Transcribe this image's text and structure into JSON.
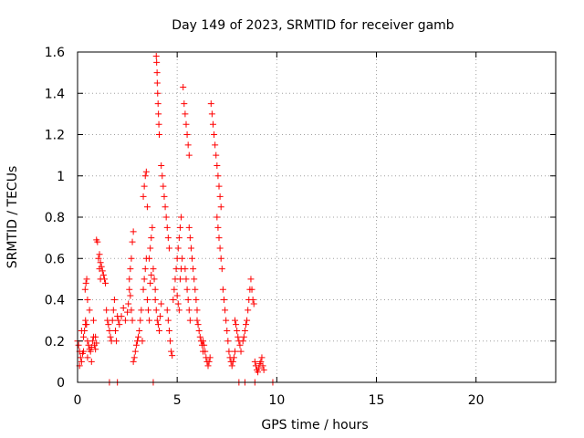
{
  "chart_data": {
    "type": "scatter",
    "title": "Day 149 of 2023, SRMTID for receiver gamb",
    "xlabel": "GPS time / hours",
    "ylabel": "SRMTID / TECUs",
    "xlim": [
      0,
      24
    ],
    "ylim": [
      0,
      1.6
    ],
    "xticks": [
      0,
      5,
      10,
      15,
      20
    ],
    "xtick_labels": [
      "0",
      "5",
      "10",
      "15",
      "20"
    ],
    "yticks": [
      0,
      0.2,
      0.4,
      0.6,
      0.8,
      1.0,
      1.2,
      1.4,
      1.6
    ],
    "ytick_labels": [
      "0",
      "0.2",
      "0.4",
      "0.6",
      "0.8",
      "1",
      "1.2",
      "1.4",
      "1.6"
    ],
    "grid": true,
    "marker": "+",
    "color": "#ff0000",
    "series": [
      {
        "x": [
          0.0,
          0.05,
          0.1,
          0.15,
          0.2,
          0.25,
          0.3,
          0.35,
          0.4,
          0.45,
          0.5,
          0.55,
          0.6,
          0.65,
          0.7,
          0.75,
          0.8,
          0.85,
          0.9,
          0.95,
          0.1,
          0.2,
          0.3,
          0.4,
          0.5,
          0.6,
          0.7,
          0.8,
          0.9,
          0.38,
          0.42,
          0.46,
          0.5,
          0.95,
          1.0,
          1.05,
          1.1,
          1.15,
          1.1,
          1.15,
          1.2,
          1.25,
          1.3,
          1.35,
          1.4,
          1.45,
          1.5,
          1.55,
          1.6,
          1.65,
          1.7,
          1.75,
          1.8,
          1.85,
          1.9,
          1.95,
          2.0,
          2.05,
          2.1,
          2.2,
          2.3,
          2.4,
          2.5,
          2.55,
          2.6,
          2.65,
          2.7,
          2.75,
          2.8,
          2.6,
          2.65,
          2.7,
          2.75,
          2.8,
          2.85,
          2.9,
          2.95,
          3.0,
          3.05,
          3.1,
          3.15,
          3.2,
          3.25,
          3.3,
          3.35,
          3.4,
          3.45,
          3.5,
          3.55,
          3.6,
          3.65,
          3.7,
          3.3,
          3.35,
          3.4,
          3.45,
          3.5,
          3.6,
          3.65,
          3.7,
          3.75,
          3.8,
          3.85,
          3.9,
          3.95,
          3.97,
          3.99,
          4.0,
          4.02,
          4.04,
          4.06,
          4.08,
          4.1,
          3.9,
          3.95,
          4.0,
          4.05,
          4.1,
          4.15,
          4.2,
          4.2,
          4.25,
          4.3,
          4.35,
          4.4,
          4.45,
          4.5,
          4.55,
          4.6,
          4.5,
          4.55,
          4.6,
          4.65,
          4.7,
          4.75,
          4.8,
          4.85,
          4.9,
          4.95,
          5.0,
          5.05,
          5.1,
          5.15,
          5.2,
          5.0,
          5.05,
          5.1,
          5.15,
          5.2,
          5.25,
          5.3,
          5.35,
          5.4,
          5.45,
          5.5,
          5.55,
          5.6,
          5.4,
          5.45,
          5.5,
          5.55,
          5.6,
          5.65,
          5.6,
          5.65,
          5.7,
          5.75,
          5.8,
          5.85,
          5.9,
          5.95,
          6.0,
          6.0,
          6.05,
          6.1,
          6.15,
          6.2,
          6.25,
          6.3,
          6.3,
          6.35,
          6.4,
          6.45,
          6.5,
          6.55,
          6.6,
          6.65,
          6.7,
          6.75,
          6.8,
          6.85,
          6.9,
          6.95,
          7.0,
          7.05,
          7.1,
          7.15,
          7.2,
          7.0,
          7.05,
          7.1,
          7.15,
          7.2,
          7.25,
          7.3,
          7.35,
          7.4,
          7.45,
          7.5,
          7.55,
          7.6,
          7.65,
          7.7,
          7.75,
          7.8,
          7.85,
          7.9,
          7.9,
          7.95,
          8.0,
          8.05,
          8.1,
          8.15,
          8.2,
          8.3,
          8.35,
          8.4,
          8.45,
          8.5,
          8.55,
          8.6,
          8.65,
          8.7,
          8.75,
          8.8,
          8.85,
          8.9,
          8.95,
          9.0,
          9.05,
          9.1,
          9.15,
          9.2,
          9.25,
          9.3,
          9.35,
          1.6,
          2.0,
          3.8,
          8.1,
          8.4,
          8.9,
          9.8
        ],
        "y": [
          0.2,
          0.18,
          0.15,
          0.12,
          0.1,
          0.14,
          0.22,
          0.25,
          0.3,
          0.28,
          0.2,
          0.18,
          0.16,
          0.15,
          0.17,
          0.2,
          0.22,
          0.18,
          0.16,
          0.19,
          0.08,
          0.25,
          0.15,
          0.28,
          0.12,
          0.35,
          0.1,
          0.3,
          0.22,
          0.45,
          0.48,
          0.5,
          0.4,
          0.69,
          0.68,
          0.6,
          0.55,
          0.5,
          0.62,
          0.58,
          0.56,
          0.54,
          0.52,
          0.5,
          0.48,
          0.35,
          0.3,
          0.28,
          0.25,
          0.22,
          0.2,
          0.3,
          0.35,
          0.4,
          0.25,
          0.2,
          0.32,
          0.3,
          0.28,
          0.32,
          0.36,
          0.3,
          0.34,
          0.38,
          0.45,
          0.55,
          0.6,
          0.68,
          0.73,
          0.5,
          0.42,
          0.35,
          0.3,
          0.1,
          0.12,
          0.15,
          0.18,
          0.2,
          0.22,
          0.25,
          0.3,
          0.35,
          0.2,
          0.45,
          0.5,
          0.55,
          0.6,
          0.4,
          0.35,
          0.3,
          0.48,
          0.52,
          0.9,
          0.95,
          1.0,
          1.02,
          0.85,
          0.6,
          0.65,
          0.7,
          0.75,
          0.55,
          0.5,
          0.45,
          1.58,
          1.55,
          1.5,
          1.45,
          1.4,
          1.35,
          1.3,
          1.25,
          1.2,
          0.4,
          0.35,
          0.3,
          0.28,
          0.25,
          0.32,
          0.38,
          1.05,
          1.0,
          0.95,
          0.9,
          0.85,
          0.8,
          0.75,
          0.7,
          0.65,
          0.35,
          0.3,
          0.25,
          0.2,
          0.15,
          0.13,
          0.4,
          0.45,
          0.5,
          0.55,
          0.6,
          0.65,
          0.7,
          0.75,
          0.8,
          0.42,
          0.38,
          0.35,
          0.5,
          0.55,
          0.6,
          1.43,
          1.35,
          1.3,
          1.25,
          1.2,
          1.15,
          1.1,
          0.55,
          0.5,
          0.45,
          0.4,
          0.35,
          0.3,
          0.75,
          0.7,
          0.65,
          0.6,
          0.55,
          0.5,
          0.45,
          0.4,
          0.35,
          0.3,
          0.28,
          0.25,
          0.22,
          0.2,
          0.18,
          0.15,
          0.2,
          0.18,
          0.15,
          0.12,
          0.1,
          0.08,
          0.1,
          0.12,
          1.35,
          1.3,
          1.25,
          1.2,
          1.15,
          1.1,
          1.05,
          1.0,
          0.95,
          0.9,
          0.85,
          0.8,
          0.75,
          0.7,
          0.65,
          0.6,
          0.55,
          0.45,
          0.4,
          0.35,
          0.3,
          0.25,
          0.2,
          0.15,
          0.12,
          0.1,
          0.08,
          0.1,
          0.12,
          0.15,
          0.3,
          0.28,
          0.25,
          0.22,
          0.2,
          0.18,
          0.15,
          0.2,
          0.22,
          0.25,
          0.28,
          0.3,
          0.35,
          0.4,
          0.45,
          0.5,
          0.45,
          0.4,
          0.38,
          0.1,
          0.08,
          0.06,
          0.05,
          0.07,
          0.09,
          0.1,
          0.12,
          0.08,
          0.06,
          0.0,
          0.0,
          0.0,
          0.0,
          0.0,
          0.0,
          0.0
        ]
      }
    ]
  }
}
